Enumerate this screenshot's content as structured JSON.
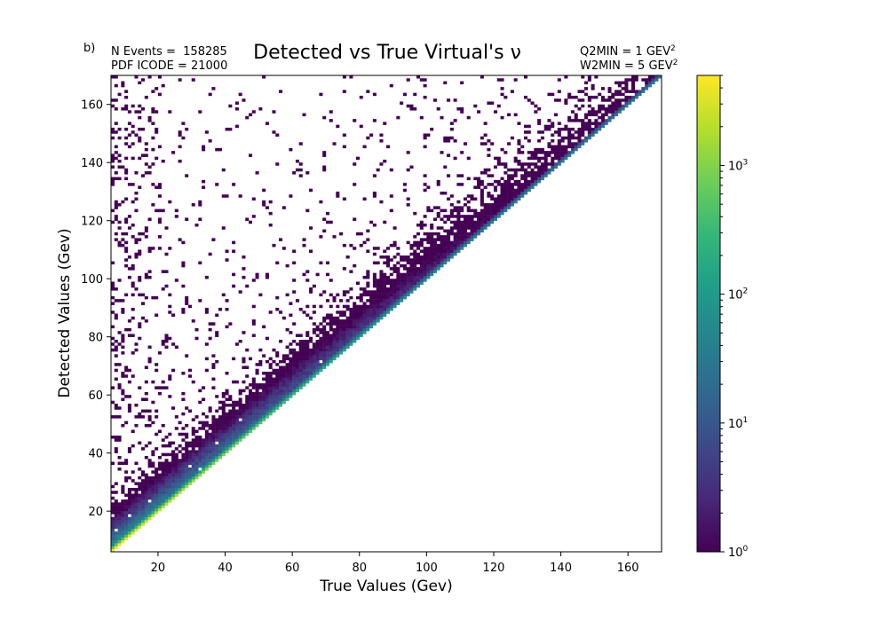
{
  "chart_data": {
    "type": "heatmap",
    "panel_label": "b)",
    "title": "Detected vs True Virtual's ν",
    "annotations": {
      "left_line1": "N Events =  158285",
      "left_line2": "PDF ICODE = 21000",
      "right_line1": "Q2MIN = 1 GEV",
      "right_line1_sup": "2",
      "right_line2": "W2MIN = 5 GEV",
      "right_line2_sup": "2"
    },
    "xlabel": "True Values (Gev)",
    "ylabel": "Detected Values (Gev)",
    "xlim": [
      6,
      170
    ],
    "ylim": [
      6,
      170
    ],
    "x_ticks": [
      "20",
      "40",
      "60",
      "80",
      "100",
      "120",
      "140",
      "160"
    ],
    "y_ticks": [
      "20",
      "40",
      "60",
      "80",
      "100",
      "120",
      "140",
      "160"
    ],
    "bins": 164,
    "colorbar": {
      "scale": "log",
      "colormap": "viridis",
      "range": [
        1,
        5000
      ],
      "ticks": [
        {
          "base": "10",
          "exp": "0"
        },
        {
          "base": "10",
          "exp": "1"
        },
        {
          "base": "10",
          "exp": "2"
        },
        {
          "base": "10",
          "exp": "3"
        }
      ]
    },
    "distribution": "counts concentrated just above the diagonal y = x (peak ~5000 near the diagonal at low energies), decaying on a log scale with distance above the diagonal; sparse single counts fill the region above; no counts below the diagonal",
    "colors": {
      "viridis": [
        "#440154",
        "#482878",
        "#3e4989",
        "#31688e",
        "#26828e",
        "#1f9e89",
        "#35b779",
        "#6ece58",
        "#b5de2b",
        "#fde725"
      ]
    }
  }
}
